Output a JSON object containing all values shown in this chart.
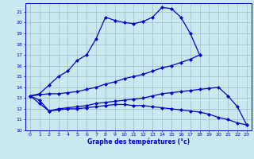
{
  "title": "Graphe des températures (°c)",
  "xlim": [
    -0.5,
    23.5
  ],
  "ylim": [
    10,
    21.8
  ],
  "yticks": [
    10,
    11,
    12,
    13,
    14,
    15,
    16,
    17,
    18,
    19,
    20,
    21
  ],
  "xticks": [
    0,
    1,
    2,
    3,
    4,
    5,
    6,
    7,
    8,
    9,
    10,
    11,
    12,
    13,
    14,
    15,
    16,
    17,
    18,
    19,
    20,
    21,
    22,
    23
  ],
  "bg_color": "#cce8ef",
  "line_color": "#0000cc",
  "grid_color": "#99bbcc",
  "series1_x": [
    0,
    1,
    2,
    3,
    4,
    5,
    6,
    7,
    8,
    9,
    10,
    11,
    12,
    13,
    14,
    15,
    16,
    17,
    18
  ],
  "series1_y": [
    13.2,
    13.4,
    14.2,
    15.0,
    15.5,
    16.5,
    17.0,
    18.5,
    20.5,
    20.2,
    20.0,
    19.9,
    20.1,
    20.5,
    21.4,
    21.3,
    20.5,
    19.0,
    17.0
  ],
  "series2_x": [
    0,
    1,
    2,
    3,
    4,
    5,
    6,
    7,
    8,
    9,
    10,
    11,
    12,
    13,
    14,
    15,
    16,
    17,
    18
  ],
  "series2_y": [
    13.2,
    13.3,
    13.4,
    13.4,
    13.5,
    13.6,
    13.8,
    14.0,
    14.3,
    14.5,
    14.8,
    15.0,
    15.2,
    15.5,
    15.8,
    16.0,
    16.3,
    16.6,
    17.0
  ],
  "series3_x": [
    0,
    1,
    2,
    3,
    4,
    5,
    6,
    7,
    8,
    9,
    10,
    11,
    12,
    13,
    14,
    15,
    16,
    17,
    18,
    19,
    20,
    21,
    22,
    23
  ],
  "series3_y": [
    13.2,
    12.8,
    11.8,
    12.0,
    12.1,
    12.2,
    12.3,
    12.5,
    12.6,
    12.7,
    12.8,
    12.9,
    13.0,
    13.2,
    13.4,
    13.5,
    13.6,
    13.7,
    13.8,
    13.9,
    14.0,
    13.2,
    12.2,
    10.5
  ],
  "series4_x": [
    0,
    1,
    2,
    3,
    4,
    5,
    6,
    7,
    8,
    9,
    10,
    11,
    12,
    13,
    14,
    15,
    16,
    17,
    18,
    19,
    20,
    21,
    22,
    23
  ],
  "series4_y": [
    13.2,
    12.5,
    11.8,
    11.9,
    12.0,
    12.0,
    12.1,
    12.2,
    12.3,
    12.4,
    12.4,
    12.3,
    12.3,
    12.2,
    12.1,
    12.0,
    11.9,
    11.8,
    11.7,
    11.5,
    11.2,
    11.0,
    10.7,
    10.5
  ]
}
